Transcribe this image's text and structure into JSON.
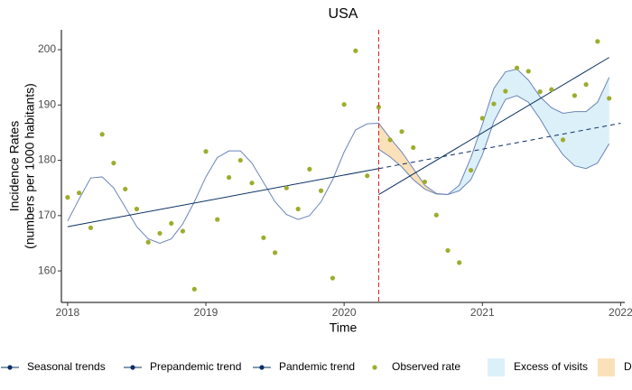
{
  "chart_data": {
    "type": "line",
    "title": "USA",
    "x_label": "Time",
    "y_label": [
      "Incidence Rates",
      "(numbers per 1000 habitants)"
    ],
    "xlim": [
      2017.955,
      2022.03
    ],
    "xticks": [
      2018,
      2019,
      2020,
      2021,
      2022
    ],
    "ylim": [
      154.3,
      203.6
    ],
    "yticks": [
      160,
      170,
      180,
      190,
      200
    ],
    "grid": false,
    "vline": {
      "x": 2020.25,
      "color": "#d7191c"
    },
    "series": [
      {
        "name": "Seasonal trends",
        "kind": "line",
        "color": "#6b84b8",
        "legend_color": "#0b3060",
        "x": [
          2018,
          2018.083,
          2018.167,
          2018.25,
          2018.333,
          2018.417,
          2018.5,
          2018.583,
          2018.667,
          2018.75,
          2018.833,
          2018.917,
          2019,
          2019.083,
          2019.167,
          2019.25,
          2019.333,
          2019.417,
          2019.5,
          2019.583,
          2019.667,
          2019.75,
          2019.833,
          2019.917,
          2020,
          2020.083,
          2020.167,
          2020.25
        ],
        "values": [
          169.0,
          173.0,
          176.8,
          177.0,
          175.0,
          171.5,
          168.0,
          165.8,
          165.0,
          165.8,
          168.5,
          172.5,
          177.0,
          180.5,
          181.7,
          181.7,
          179.5,
          176.0,
          172.5,
          170.2,
          169.3,
          170.0,
          172.5,
          176.5,
          181.5,
          185.5,
          186.6,
          186.7
        ]
      },
      {
        "name": "Prepandemic trend",
        "kind": "line",
        "color": "#0b3060",
        "segment_styles": [
          "solid",
          "dashed"
        ],
        "x": [
          2018,
          2020.25,
          2022
        ],
        "values": [
          168.0,
          178.5,
          186.7
        ]
      },
      {
        "name": "Pandemic trend",
        "kind": "line",
        "color": "#0b3060",
        "x": [
          2020.25,
          2021.917
        ],
        "values": [
          173.8,
          198.6
        ]
      },
      {
        "name": "Observed rate",
        "kind": "scatter",
        "color": "#9dad2b",
        "x": [
          2018,
          2018.083,
          2018.167,
          2018.25,
          2018.333,
          2018.417,
          2018.5,
          2018.583,
          2018.667,
          2018.75,
          2018.833,
          2018.917,
          2019,
          2019.083,
          2019.167,
          2019.25,
          2019.333,
          2019.417,
          2019.5,
          2019.583,
          2019.667,
          2019.75,
          2019.833,
          2019.917,
          2020,
          2020.083,
          2020.167,
          2020.25,
          2020.333,
          2020.417,
          2020.5,
          2020.583,
          2020.667,
          2020.75,
          2020.833,
          2020.917,
          2021,
          2021.083,
          2021.167,
          2021.25,
          2021.333,
          2021.417,
          2021.5,
          2021.583,
          2021.667,
          2021.75,
          2021.833,
          2021.917
        ],
        "values": [
          173.3,
          174.1,
          167.8,
          184.7,
          179.5,
          174.8,
          171.2,
          165.2,
          166.8,
          168.6,
          167.2,
          156.7,
          181.6,
          169.3,
          176.9,
          180.0,
          175.9,
          166.0,
          163.3,
          175.0,
          171.2,
          178.4,
          174.5,
          158.7,
          190.1,
          199.8,
          177.2,
          189.6,
          183.7,
          185.2,
          182.3,
          176.1,
          170.1,
          163.7,
          161.5,
          178.2,
          187.6,
          190.2,
          192.5,
          196.7,
          196.1,
          192.4,
          192.8,
          183.7,
          191.7,
          193.7,
          201.5,
          191.2
        ]
      }
    ],
    "bands": [
      {
        "name": "Excess of visits",
        "fill": "#dcf0f9",
        "edge": "#6b84b8",
        "x": [
          2020.75,
          2020.833,
          2020.917,
          2021,
          2021.083,
          2021.167,
          2021.25,
          2021.333,
          2021.417,
          2021.5,
          2021.583,
          2021.667,
          2021.75,
          2021.833,
          2021.917
        ],
        "upper": [
          173.8,
          175.5,
          180.5,
          186.5,
          193.0,
          196.0,
          196.5,
          194.5,
          191.5,
          189.5,
          188.5,
          188.8,
          188.8,
          190.5,
          195.0
        ],
        "lower": [
          173.8,
          174.5,
          176.5,
          181.0,
          187.0,
          191.0,
          191.7,
          190.5,
          187.5,
          184.0,
          181.0,
          179.0,
          178.5,
          179.5,
          183.0
        ]
      },
      {
        "name": "D",
        "fill": "#fbe1ba",
        "edge": "#6b84b8",
        "x": [
          2020.25,
          2020.333,
          2020.417,
          2020.5,
          2020.583,
          2020.667,
          2020.75
        ],
        "upper": [
          186.7,
          184.0,
          181.5,
          178.5,
          175.5,
          174.0,
          173.8
        ],
        "lower": [
          182.0,
          180.6,
          178.8,
          176.5,
          174.8,
          173.9,
          173.8
        ]
      }
    ]
  }
}
